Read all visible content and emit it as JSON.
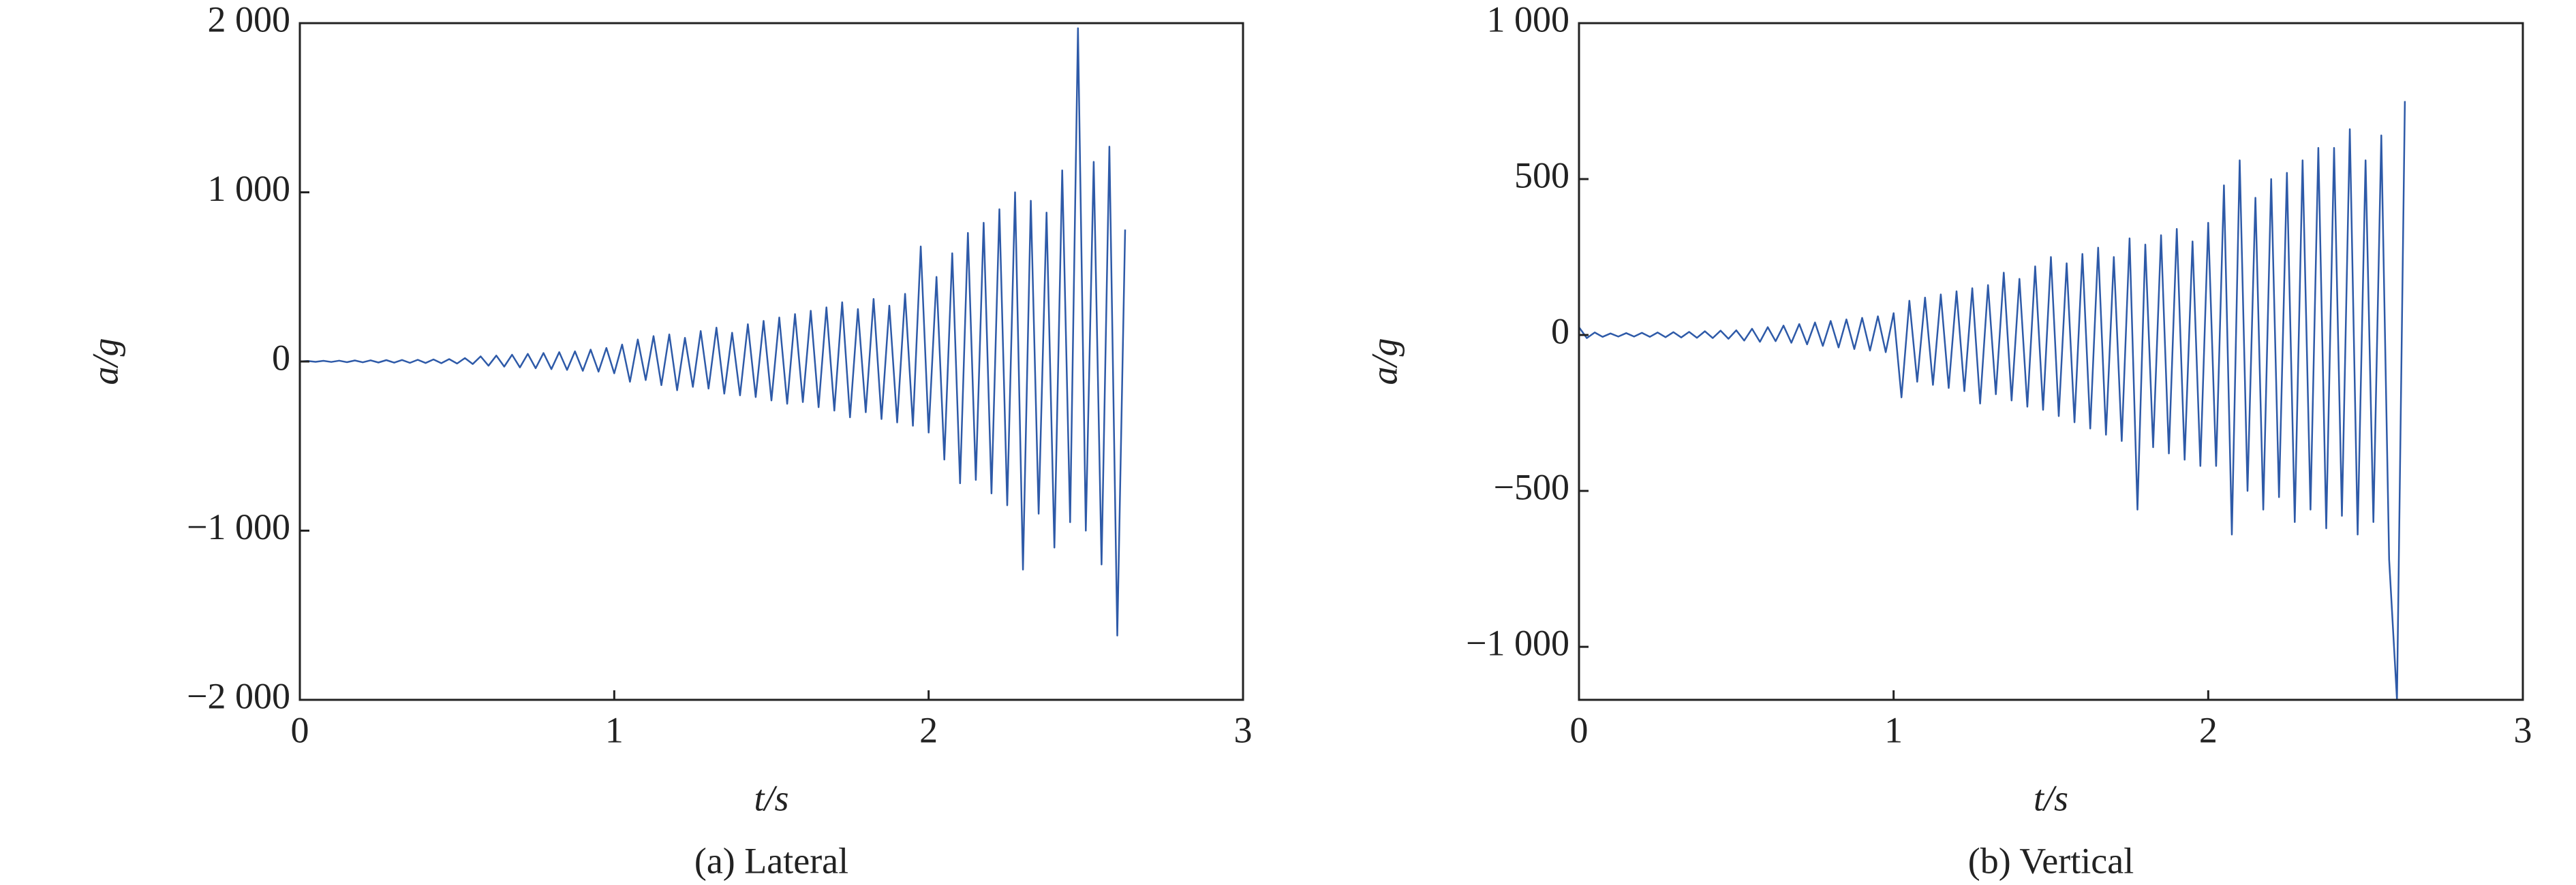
{
  "chart_data": [
    {
      "type": "line",
      "y_label": "a/g",
      "x_label": "t/s",
      "caption": "(a) Lateral",
      "xlim": [
        0,
        3
      ],
      "xticks": [
        0,
        1,
        2,
        3
      ],
      "ylim": [
        -2000,
        2000
      ],
      "yticks": [
        {
          "value": -2000,
          "label": "−2 000"
        },
        {
          "value": -1000,
          "label": "−1 000"
        },
        0,
        {
          "value": 1000,
          "label": "1 000"
        },
        {
          "value": 2000,
          "label": "2 000"
        }
      ],
      "grid": false,
      "color": "#2e5aa8",
      "x": [
        0,
        0.025,
        0.05,
        0.075,
        0.1,
        0.125,
        0.15,
        0.175,
        0.2,
        0.225,
        0.25,
        0.275,
        0.3,
        0.325,
        0.35,
        0.375,
        0.4,
        0.425,
        0.45,
        0.475,
        0.5,
        0.525,
        0.55,
        0.575,
        0.6,
        0.625,
        0.65,
        0.675,
        0.7,
        0.725,
        0.75,
        0.775,
        0.8,
        0.825,
        0.85,
        0.875,
        0.9,
        0.925,
        0.95,
        0.975,
        1,
        1.025,
        1.05,
        1.075,
        1.1,
        1.125,
        1.15,
        1.175,
        1.2,
        1.225,
        1.25,
        1.275,
        1.3,
        1.325,
        1.35,
        1.375,
        1.4,
        1.425,
        1.45,
        1.475,
        1.5,
        1.525,
        1.55,
        1.575,
        1.6,
        1.625,
        1.65,
        1.675,
        1.7,
        1.725,
        1.75,
        1.775,
        1.8,
        1.825,
        1.85,
        1.875,
        1.9,
        1.925,
        1.95,
        1.975,
        2,
        2.025,
        2.05,
        2.075,
        2.1,
        2.125,
        2.15,
        2.175,
        2.2,
        2.225,
        2.25,
        2.275,
        2.3,
        2.325,
        2.35,
        2.375,
        2.4,
        2.425,
        2.45,
        2.475,
        2.5,
        2.525,
        2.55,
        2.575,
        2.6,
        2.625
      ],
      "values": [
        0,
        3,
        -2,
        4,
        -3,
        5,
        -4,
        6,
        -5,
        7,
        -6,
        8,
        -7,
        9,
        -8,
        10,
        -9,
        12,
        -10,
        14,
        -12,
        20,
        -15,
        30,
        -25,
        35,
        -30,
        40,
        -35,
        45,
        -40,
        50,
        -45,
        55,
        -50,
        60,
        -55,
        70,
        -60,
        80,
        -70,
        100,
        -120,
        130,
        -110,
        150,
        -140,
        160,
        -170,
        140,
        -150,
        180,
        -160,
        200,
        -190,
        170,
        -200,
        220,
        -210,
        240,
        -230,
        260,
        -250,
        280,
        -240,
        300,
        -270,
        320,
        -290,
        350,
        -330,
        310,
        -300,
        370,
        -340,
        330,
        -360,
        400,
        -380,
        680,
        -420,
        500,
        -580,
        640,
        -720,
        760,
        -700,
        820,
        -780,
        900,
        -850,
        1000,
        -1230,
        950,
        -900,
        880,
        -1100,
        1130,
        -950,
        1970,
        -1000,
        1180,
        -1200,
        1270,
        -1620,
        780
      ]
    },
    {
      "type": "line",
      "y_label": "a/g",
      "x_label": "t/s",
      "caption": "(b) Vertical",
      "xlim": [
        0,
        3
      ],
      "xticks": [
        0,
        1,
        2,
        3
      ],
      "ylim": [
        -1170,
        1000
      ],
      "yticks": [
        {
          "value": -1000,
          "label": "−1 000"
        },
        {
          "value": -500,
          "label": "−500"
        },
        0,
        500,
        {
          "value": 1000,
          "label": "1 000"
        }
      ],
      "grid": false,
      "color": "#2e5aa8",
      "x": [
        0,
        0.025,
        0.05,
        0.075,
        0.1,
        0.125,
        0.15,
        0.175,
        0.2,
        0.225,
        0.25,
        0.275,
        0.3,
        0.325,
        0.35,
        0.375,
        0.4,
        0.425,
        0.45,
        0.475,
        0.5,
        0.525,
        0.55,
        0.575,
        0.6,
        0.625,
        0.65,
        0.675,
        0.7,
        0.725,
        0.75,
        0.775,
        0.8,
        0.825,
        0.85,
        0.875,
        0.9,
        0.925,
        0.95,
        0.975,
        1,
        1.025,
        1.05,
        1.075,
        1.1,
        1.125,
        1.15,
        1.175,
        1.2,
        1.225,
        1.25,
        1.275,
        1.3,
        1.325,
        1.35,
        1.375,
        1.4,
        1.425,
        1.45,
        1.475,
        1.5,
        1.525,
        1.55,
        1.575,
        1.6,
        1.625,
        1.65,
        1.675,
        1.7,
        1.725,
        1.75,
        1.775,
        1.8,
        1.825,
        1.85,
        1.875,
        1.9,
        1.925,
        1.95,
        1.975,
        2,
        2.025,
        2.05,
        2.075,
        2.1,
        2.125,
        2.15,
        2.175,
        2.2,
        2.225,
        2.25,
        2.275,
        2.3,
        2.325,
        2.35,
        2.375,
        2.4,
        2.425,
        2.45,
        2.475,
        2.5,
        2.525,
        2.55,
        2.575,
        2.6,
        2.625
      ],
      "values": [
        25,
        -10,
        8,
        -6,
        5,
        -5,
        6,
        -5,
        7,
        -6,
        8,
        -7,
        9,
        -8,
        10,
        -9,
        12,
        -10,
        14,
        -12,
        15,
        -18,
        20,
        -22,
        25,
        -20,
        30,
        -25,
        35,
        -30,
        40,
        -35,
        45,
        -40,
        50,
        -45,
        55,
        -50,
        60,
        -55,
        70,
        -200,
        110,
        -150,
        120,
        -160,
        130,
        -170,
        140,
        -180,
        150,
        -220,
        160,
        -190,
        200,
        -210,
        180,
        -230,
        220,
        -240,
        250,
        -260,
        230,
        -280,
        260,
        -300,
        280,
        -320,
        250,
        -340,
        310,
        -560,
        290,
        -360,
        320,
        -380,
        340,
        -400,
        300,
        -420,
        360,
        -420,
        480,
        -640,
        560,
        -500,
        440,
        -560,
        500,
        -520,
        520,
        -600,
        560,
        -560,
        600,
        -620,
        600,
        -580,
        660,
        -640,
        560,
        -600,
        640,
        -720,
        -1170,
        750
      ]
    }
  ]
}
